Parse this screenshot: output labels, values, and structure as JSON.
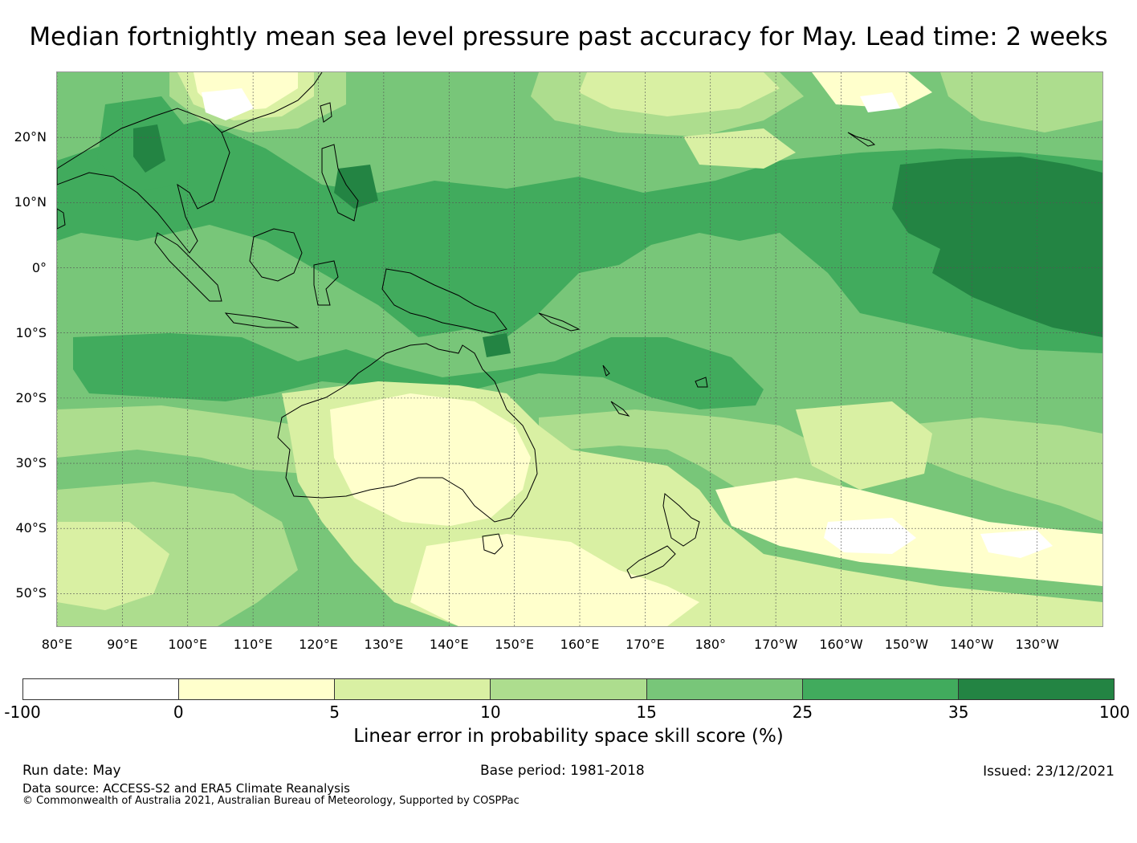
{
  "title": "Median fortnightly mean sea level pressure past accuracy for May. Lead time: 2 weeks",
  "map": {
    "lat_labels": [
      "20°N",
      "10°N",
      "0°",
      "10°S",
      "20°S",
      "30°S",
      "40°S",
      "50°S"
    ],
    "lon_labels": [
      "80°E",
      "90°E",
      "100°E",
      "110°E",
      "120°E",
      "130°E",
      "140°E",
      "150°E",
      "160°E",
      "170°E",
      "180°",
      "170°W",
      "160°W",
      "150°W",
      "140°W",
      "130°W"
    ],
    "extent": {
      "lon_min": 80,
      "lon_max": 240,
      "lat_min": -55,
      "lat_max": 30
    },
    "gridlines": true
  },
  "colorbar": {
    "ticks": [
      "-100",
      "0",
      "5",
      "10",
      "15",
      "25",
      "35",
      "100"
    ],
    "colors": [
      "#ffffff",
      "#ffffcc",
      "#d9f0a3",
      "#addd8e",
      "#78c679",
      "#41ab5d",
      "#238443"
    ],
    "label": "Linear error in probability space skill score (%)"
  },
  "footer": {
    "run_date": "Run date: May",
    "base_period": "Base period: 1981-2018",
    "issued": "Issued: 23/12/2021",
    "data_source": "Data source: ACCESS-S2 and ERA5 Climate Reanalysis",
    "copyright": "© Commonwealth of Australia 2021, Australian Bureau of Meteorology, Supported by COSPPac"
  }
}
